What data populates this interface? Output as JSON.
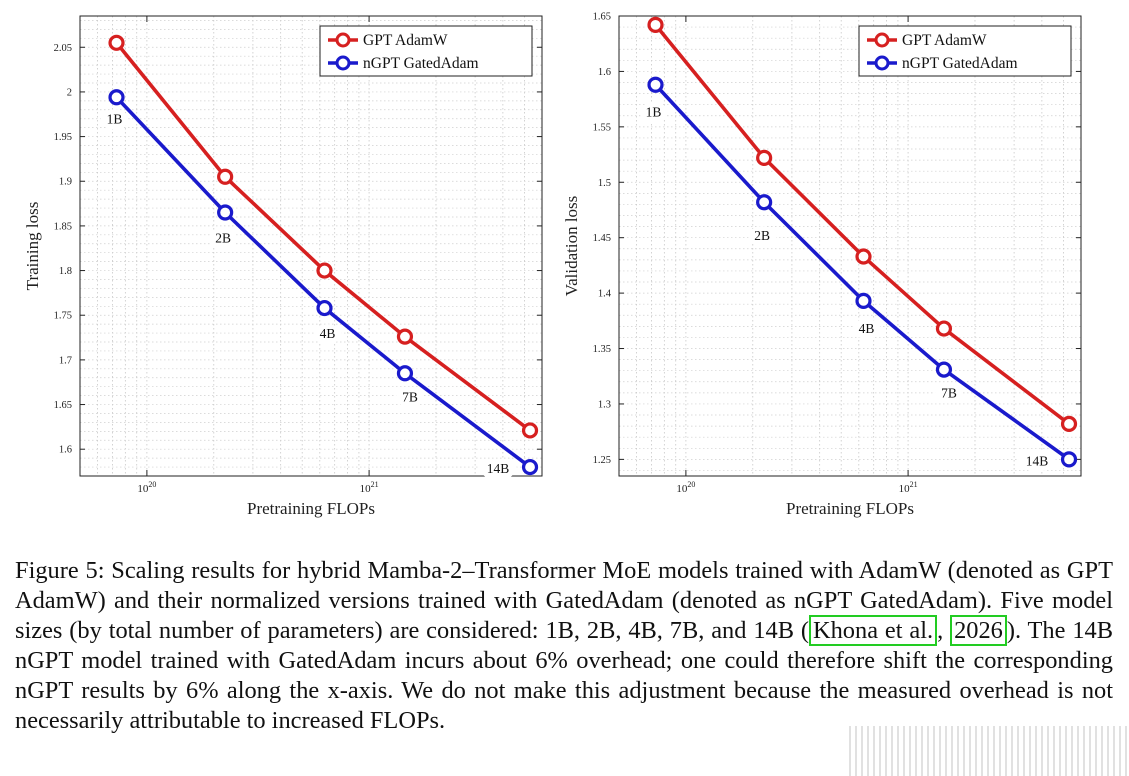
{
  "chart_data": [
    {
      "type": "line",
      "panel": "left",
      "xlabel": "Pretraining FLOPs",
      "ylabel": "Training loss",
      "xscale": "log",
      "xlim": [
        5e+19,
        6e+21
      ],
      "ylim": [
        1.57,
        2.085
      ],
      "yticks": [
        1.6,
        1.65,
        1.7,
        1.75,
        1.8,
        1.85,
        1.9,
        1.95,
        2.0,
        2.05
      ],
      "ytick_labels": [
        "1.6",
        "1.65",
        "1.7",
        "1.75",
        "1.8",
        "1.85",
        "1.9",
        "1.95",
        "2",
        "2.05"
      ],
      "xticks": [
        1e+20,
        1e+21
      ],
      "xtick_labels": [
        {
          "base": "10",
          "exp": "20"
        },
        {
          "base": "10",
          "exp": "21"
        }
      ],
      "grid": true,
      "legend_position": "top-right",
      "x": [
        7.3e+19,
        2.25e+20,
        6.3e+20,
        1.45e+21,
        5.3e+21
      ],
      "point_labels": [
        "1B",
        "2B",
        "4B",
        "7B",
        "14B"
      ],
      "series": [
        {
          "name": "GPT AdamW",
          "color": "#d62020",
          "values": [
            2.055,
            1.905,
            1.8,
            1.726,
            1.621
          ]
        },
        {
          "name": "nGPT GatedAdam",
          "color": "#1a1acc",
          "values": [
            1.994,
            1.865,
            1.758,
            1.685,
            1.58
          ]
        }
      ]
    },
    {
      "type": "line",
      "panel": "right",
      "xlabel": "Pretraining FLOPs",
      "ylabel": "Validation loss",
      "xscale": "log",
      "xlim": [
        5e+19,
        6e+21
      ],
      "ylim": [
        1.235,
        1.65
      ],
      "yticks": [
        1.25,
        1.3,
        1.35,
        1.4,
        1.45,
        1.5,
        1.55,
        1.6,
        1.65
      ],
      "ytick_labels": [
        "1.25",
        "1.3",
        "1.35",
        "1.4",
        "1.45",
        "1.5",
        "1.55",
        "1.6",
        "1.65"
      ],
      "xticks": [
        1e+20,
        1e+21
      ],
      "xtick_labels": [
        {
          "base": "10",
          "exp": "20"
        },
        {
          "base": "10",
          "exp": "21"
        }
      ],
      "grid": true,
      "legend_position": "top-right",
      "x": [
        7.3e+19,
        2.25e+20,
        6.3e+20,
        1.45e+21,
        5.3e+21
      ],
      "point_labels": [
        "1B",
        "2B",
        "4B",
        "7B",
        "14B"
      ],
      "series": [
        {
          "name": "GPT AdamW",
          "color": "#d62020",
          "values": [
            1.642,
            1.522,
            1.433,
            1.368,
            1.282
          ]
        },
        {
          "name": "nGPT GatedAdam",
          "color": "#1a1acc",
          "values": [
            1.588,
            1.482,
            1.393,
            1.331,
            1.25
          ]
        }
      ]
    }
  ],
  "caption": {
    "before": "Figure 5: Scaling results for hybrid Mamba-2–Transformer MoE models trained with AdamW (denoted as GPT AdamW) and their normalized versions trained with GatedAdam (denoted as nGPT GatedAdam). Five model sizes (by total number of parameters) are considered: 1B, 2B, 4B, 7B, and 14B (",
    "cite_author": "Khona et al.",
    "comma": ", ",
    "cite_year": "2026",
    "after": "). The 14B nGPT model trained with GatedAdam incurs about 6% overhead; one could therefore shift the corresponding nGPT results by 6% along the x-axis. We do not make this adjustment because the measured overhead is not necessarily attributable to increased FLOPs."
  }
}
